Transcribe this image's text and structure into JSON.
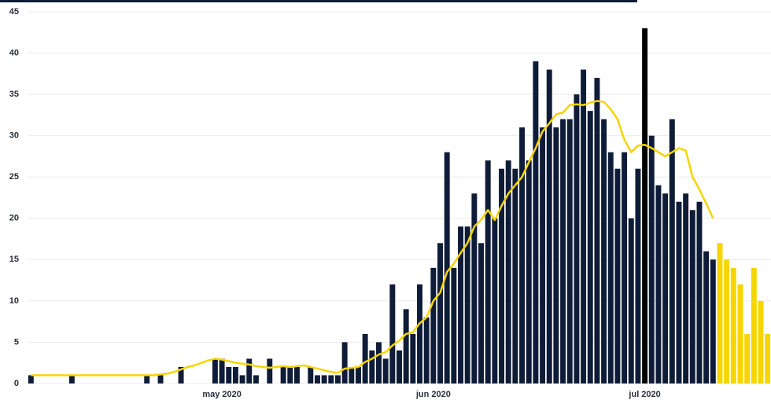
{
  "chart_data": {
    "type": "bar",
    "categories": [
      null,
      null,
      null,
      null,
      null,
      null,
      null,
      null,
      null,
      null,
      null,
      null,
      null,
      null,
      null,
      null,
      null,
      null,
      null,
      null,
      null,
      null,
      null,
      null,
      null,
      null,
      null,
      null,
      "may 2020",
      null,
      null,
      null,
      null,
      null,
      null,
      null,
      null,
      null,
      null,
      null,
      null,
      null,
      null,
      null,
      null,
      null,
      null,
      null,
      null,
      null,
      null,
      null,
      null,
      null,
      null,
      null,
      null,
      null,
      null,
      "jun 2020",
      null,
      null,
      null,
      null,
      null,
      null,
      null,
      null,
      null,
      null,
      null,
      null,
      null,
      null,
      null,
      null,
      null,
      null,
      null,
      null,
      null,
      null,
      null,
      null,
      null,
      null,
      null,
      null,
      null,
      null,
      "jul 2020",
      null,
      null,
      null,
      null,
      null,
      null,
      null,
      null,
      null,
      null,
      null,
      null,
      null,
      null,
      null,
      null,
      null,
      null
    ],
    "series": [
      {
        "color": "#0f1c38",
        "values": [
          1,
          0,
          0,
          0,
          0,
          0,
          1,
          0,
          0,
          0,
          0,
          0,
          0,
          0,
          0,
          0,
          0,
          1,
          0,
          1,
          0,
          0,
          2,
          0,
          0,
          0,
          0,
          3,
          3,
          2,
          2,
          1,
          3,
          1,
          0,
          3,
          0,
          2,
          2,
          2,
          0,
          2,
          1,
          1,
          1,
          1,
          5,
          2,
          2,
          6,
          4,
          5,
          3,
          12,
          4,
          9,
          6,
          12,
          8,
          14,
          17,
          28,
          14,
          19,
          19,
          23,
          17,
          27,
          20,
          26,
          27,
          26,
          31,
          27,
          39,
          31,
          38,
          31,
          32,
          32,
          35,
          38,
          33,
          37,
          32,
          28,
          26,
          28,
          20,
          26,
          43,
          30,
          24,
          23,
          32,
          22,
          23,
          21,
          22,
          16,
          15,
          17,
          15,
          14,
          12,
          6,
          14,
          10,
          6
        ],
        "colors": [
          "#0f1c38",
          "#0f1c38",
          "#0f1c38",
          "#0f1c38",
          "#0f1c38",
          "#0f1c38",
          "#0f1c38",
          "#0f1c38",
          "#0f1c38",
          "#0f1c38",
          "#0f1c38",
          "#0f1c38",
          "#0f1c38",
          "#0f1c38",
          "#0f1c38",
          "#0f1c38",
          "#0f1c38",
          "#0f1c38",
          "#0f1c38",
          "#0f1c38",
          "#0f1c38",
          "#0f1c38",
          "#0f1c38",
          "#0f1c38",
          "#0f1c38",
          "#0f1c38",
          "#0f1c38",
          "#0f1c38",
          "#0f1c38",
          "#0f1c38",
          "#0f1c38",
          "#0f1c38",
          "#0f1c38",
          "#0f1c38",
          "#0f1c38",
          "#0f1c38",
          "#0f1c38",
          "#0f1c38",
          "#0f1c38",
          "#0f1c38",
          "#0f1c38",
          "#0f1c38",
          "#0f1c38",
          "#0f1c38",
          "#0f1c38",
          "#0f1c38",
          "#0f1c38",
          "#0f1c38",
          "#0f1c38",
          "#0f1c38",
          "#0f1c38",
          "#0f1c38",
          "#0f1c38",
          "#0f1c38",
          "#0f1c38",
          "#0f1c38",
          "#0f1c38",
          "#0f1c38",
          "#0f1c38",
          "#0f1c38",
          "#0f1c38",
          "#0f1c38",
          "#0f1c38",
          "#0f1c38",
          "#0f1c38",
          "#0f1c38",
          "#0f1c38",
          "#0f1c38",
          "#0f1c38",
          "#0f1c38",
          "#0f1c38",
          "#0f1c38",
          "#0f1c38",
          "#0f1c38",
          "#0f1c38",
          "#0f1c38",
          "#0f1c38",
          "#0f1c38",
          "#0f1c38",
          "#0f1c38",
          "#0f1c38",
          "#0f1c38",
          "#0f1c38",
          "#0f1c38",
          "#0f1c38",
          "#0f1c38",
          "#0f1c38",
          "#0f1c38",
          "#0f1c38",
          "#0f1c38",
          "#000000",
          "#0f1c38",
          "#0f1c38",
          "#0f1c38",
          "#0f1c38",
          "#0f1c38",
          "#0f1c38",
          "#0f1c38",
          "#0f1c38",
          "#0f1c38",
          "#0f1c38",
          "#f7d500",
          "#f7d500",
          "#f7d500",
          "#f7d500",
          "#f7d500",
          "#f7d500",
          "#f7d500",
          "#f7d500"
        ]
      },
      {
        "type": "line",
        "color": "#f7d500",
        "values": [
          1,
          1,
          1,
          1,
          1,
          1,
          1,
          1,
          1,
          1,
          1,
          1,
          1,
          1,
          1,
          1,
          1,
          1,
          1,
          1.1,
          1.2,
          1.4,
          1.7,
          2,
          2.2,
          2.5,
          2.8,
          3,
          2.9,
          2.7,
          2.5,
          2.4,
          2.3,
          2.1,
          2,
          1.9,
          2,
          2.1,
          2,
          2.1,
          2.2,
          2,
          1.8,
          1.6,
          1.4,
          1.3,
          1.8,
          1.9,
          2,
          2.6,
          3,
          3.5,
          3.8,
          4.6,
          5.2,
          6,
          6.2,
          7.3,
          8,
          10,
          11,
          13.5,
          14.5,
          15.8,
          17,
          19,
          19.8,
          21,
          19.8,
          21.5,
          23,
          24,
          25,
          26.8,
          28.5,
          30.5,
          31.5,
          32.6,
          32.8,
          33.7,
          33.8,
          33.7,
          34,
          34.2,
          34.1,
          33.2,
          32,
          29.5,
          28,
          28.8,
          28.9,
          28.5,
          28,
          27.5,
          28,
          28.5,
          28.2,
          25,
          23.5,
          21.8,
          20,
          null,
          null,
          null,
          null,
          null,
          null,
          null,
          null
        ]
      }
    ],
    "ylim": [
      0,
      45
    ],
    "yticks": [
      0,
      5,
      10,
      15,
      20,
      25,
      30,
      35,
      40,
      45
    ],
    "grid": true
  }
}
